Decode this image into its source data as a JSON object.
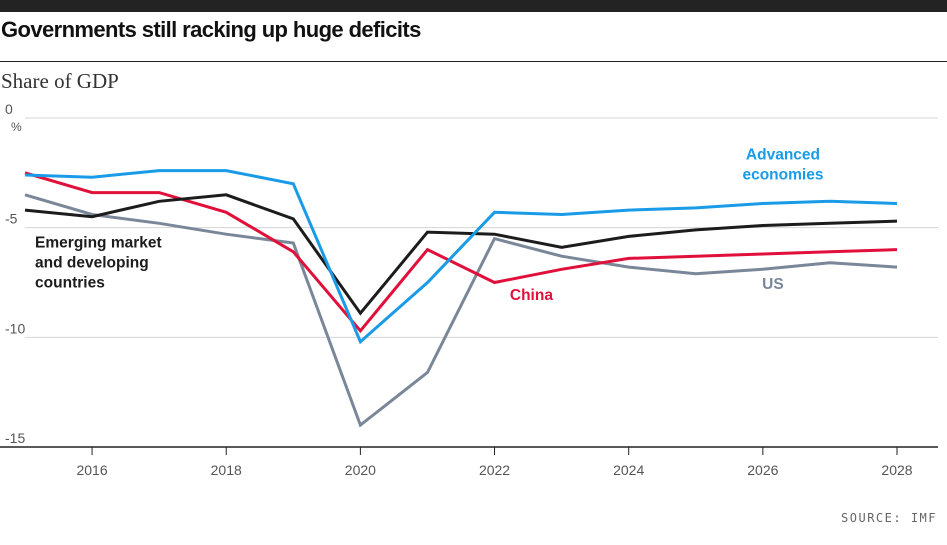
{
  "header": {
    "title": "Governments still racking up huge deficits",
    "subtitle": "Share of GDP",
    "source": "SOURCE: IMF"
  },
  "colors": {
    "advanced": "#1a9be8",
    "emerging": "#1c1c1c",
    "china": "#e0103a",
    "us": "#7a8799",
    "grid": "#d4d4d4",
    "axis": "#222222"
  },
  "chart_data": {
    "type": "line",
    "title": "Governments still racking up huge deficits",
    "subtitle": "Share of GDP",
    "ylabel": "%",
    "xlim": [
      2015,
      2028
    ],
    "ylim": [
      -15,
      0
    ],
    "yticks": [
      0,
      -5,
      -10,
      -15
    ],
    "xticks": [
      2016,
      2018,
      2020,
      2022,
      2024,
      2026,
      2028
    ],
    "grid": "horizontal",
    "x": [
      2015,
      2016,
      2017,
      2018,
      2019,
      2020,
      2021,
      2022,
      2023,
      2024,
      2025,
      2026,
      2027,
      2028
    ],
    "series": [
      {
        "key": "advanced",
        "name": "Advanced economies",
        "label_lines": [
          "Advanced",
          "economies"
        ],
        "values": [
          -2.6,
          -2.7,
          -2.4,
          -2.4,
          -3.0,
          -10.2,
          -7.5,
          -4.3,
          -4.4,
          -4.2,
          -4.1,
          -3.9,
          -3.8,
          -3.9
        ]
      },
      {
        "key": "emerging",
        "name": "Emerging market and developing countries",
        "label_lines": [
          "Emerging market",
          "and developing",
          "countries"
        ],
        "values": [
          -4.2,
          -4.5,
          -3.8,
          -3.5,
          -4.6,
          -8.9,
          -5.2,
          -5.3,
          -5.9,
          -5.4,
          -5.1,
          -4.9,
          -4.8,
          -4.7
        ]
      },
      {
        "key": "china",
        "name": "China",
        "label_lines": [
          "China"
        ],
        "values": [
          -2.5,
          -3.4,
          -3.4,
          -4.3,
          -6.1,
          -9.7,
          -6.0,
          -7.5,
          -6.9,
          -6.4,
          -6.3,
          -6.2,
          -6.1,
          -6.0
        ]
      },
      {
        "key": "us",
        "name": "US",
        "label_lines": [
          "US"
        ],
        "values": [
          -3.5,
          -4.4,
          -4.8,
          -5.3,
          -5.7,
          -14.0,
          -11.6,
          -5.5,
          -6.3,
          -6.8,
          -7.1,
          -6.9,
          -6.6,
          -6.8
        ]
      }
    ]
  }
}
